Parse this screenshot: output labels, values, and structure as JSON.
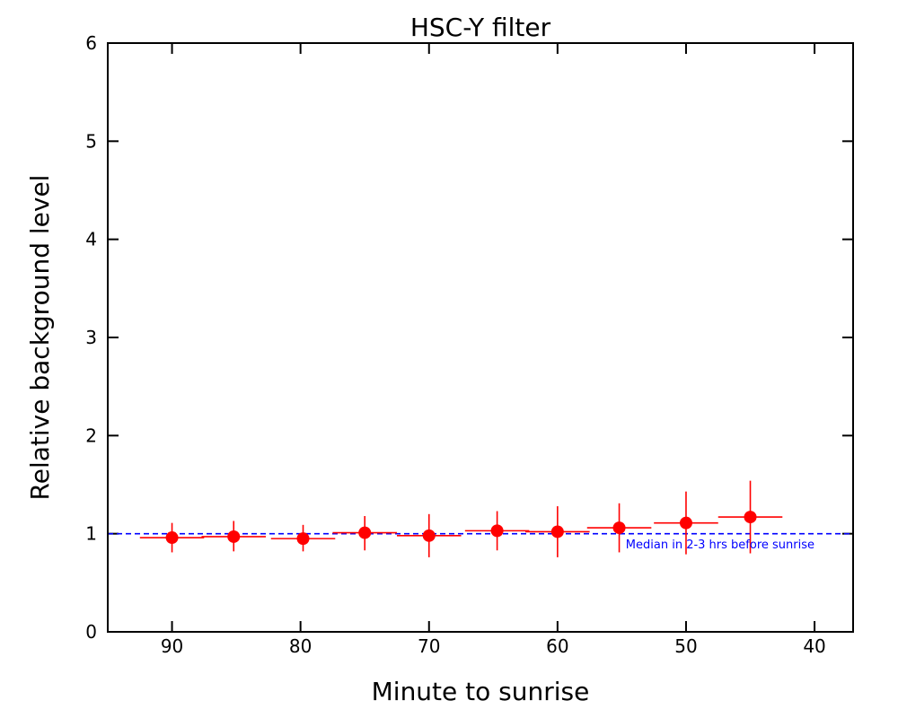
{
  "chart_data": {
    "type": "scatter",
    "title": "HSC-Y filter",
    "xlabel": "Minute to sunrise",
    "ylabel": "Relative background level",
    "xlim": [
      95,
      37
    ],
    "ylim": [
      0,
      6
    ],
    "x_ticks": [
      90,
      80,
      70,
      60,
      50,
      40
    ],
    "y_ticks": [
      0,
      1,
      2,
      3,
      4,
      5,
      6
    ],
    "reference_line": {
      "y": 1.0,
      "style": "dashed",
      "color": "#0000ff",
      "label": "Median in 2-3 hrs before sunrise"
    },
    "series": [
      {
        "color": "#ff0000",
        "points": [
          {
            "x": 90.0,
            "y": 0.96,
            "xerr": 2.5,
            "yerr": [
              0.15,
              0.15
            ]
          },
          {
            "x": 85.2,
            "y": 0.97,
            "xerr": 2.5,
            "yerr": [
              0.15,
              0.16
            ]
          },
          {
            "x": 79.8,
            "y": 0.95,
            "xerr": 2.5,
            "yerr": [
              0.13,
              0.14
            ]
          },
          {
            "x": 75.0,
            "y": 1.01,
            "xerr": 2.5,
            "yerr": [
              0.18,
              0.17
            ]
          },
          {
            "x": 70.0,
            "y": 0.98,
            "xerr": 2.5,
            "yerr": [
              0.22,
              0.22
            ]
          },
          {
            "x": 64.7,
            "y": 1.03,
            "xerr": 2.5,
            "yerr": [
              0.2,
              0.2
            ]
          },
          {
            "x": 60.0,
            "y": 1.02,
            "xerr": 2.5,
            "yerr": [
              0.26,
              0.26
            ]
          },
          {
            "x": 55.2,
            "y": 1.06,
            "xerr": 2.5,
            "yerr": [
              0.25,
              0.25
            ]
          },
          {
            "x": 50.0,
            "y": 1.11,
            "xerr": 2.5,
            "yerr": [
              0.32,
              0.32
            ]
          },
          {
            "x": 45.0,
            "y": 1.17,
            "xerr": 2.5,
            "yerr": [
              0.37,
              0.37
            ]
          }
        ]
      }
    ]
  }
}
